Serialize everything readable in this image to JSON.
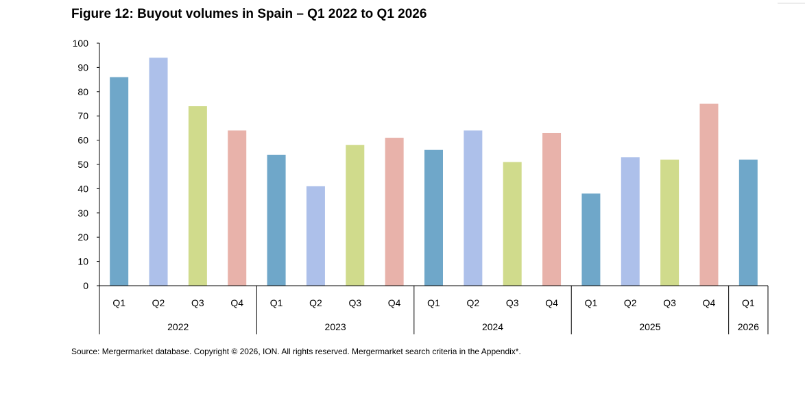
{
  "title": "Figure 12: Buyout volumes in Spain – Q1 2022 to Q1 2026",
  "source": "Source: Mergermarket database. Copyright © 2026, ION. All rights reserved. Mergermarket search criteria in the Appendix*.",
  "colors": {
    "Q1": "#6fa7c9",
    "Q2": "#adc0ea",
    "Q3": "#d0db8c",
    "Q4": "#e8b2aa"
  },
  "chart_data": {
    "type": "bar",
    "title": "Figure 12: Buyout volumes in Spain – Q1 2022 to Q1 2026",
    "xlabel": "",
    "ylabel": "",
    "ylim": [
      0,
      100
    ],
    "yticks": [
      "0",
      "10",
      "20",
      "30",
      "40",
      "50",
      "60",
      "70",
      "80",
      "90",
      "100"
    ],
    "grid": false,
    "categories": [
      "Q1",
      "Q2",
      "Q3",
      "Q4",
      "Q1",
      "Q2",
      "Q3",
      "Q4",
      "Q1",
      "Q2",
      "Q3",
      "Q4",
      "Q1",
      "Q2",
      "Q3",
      "Q4",
      "Q1"
    ],
    "groups": [
      {
        "label": "2022",
        "count": 4
      },
      {
        "label": "2023",
        "count": 4
      },
      {
        "label": "2024",
        "count": 4
      },
      {
        "label": "2025",
        "count": 4
      },
      {
        "label": "2026",
        "count": 1
      }
    ],
    "values": [
      86,
      94,
      74,
      64,
      54,
      41,
      58,
      61,
      56,
      64,
      51,
      63,
      38,
      53,
      52,
      75,
      52
    ]
  }
}
